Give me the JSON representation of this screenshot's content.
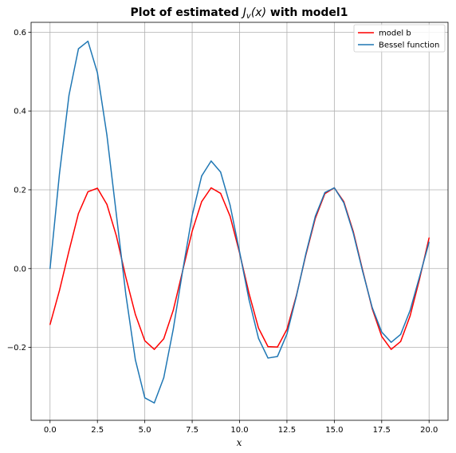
{
  "chart_data": {
    "type": "line",
    "title_prefix": "Plot of estimated ",
    "title_symbol": "J",
    "title_subscript": "v",
    "title_arg": "(x)",
    "title_suffix": " with model1",
    "xlabel": "x",
    "ylabel": "",
    "xlim": [
      -1.0,
      21.0
    ],
    "ylim": [
      -0.385,
      0.625
    ],
    "xticks": [
      0.0,
      2.5,
      5.0,
      7.5,
      10.0,
      12.5,
      15.0,
      17.5,
      20.0
    ],
    "xtick_labels": [
      "0.0",
      "2.5",
      "5.0",
      "7.5",
      "10.0",
      "12.5",
      "15.0",
      "17.5",
      "20.0"
    ],
    "yticks": [
      -0.2,
      0.0,
      0.2,
      0.4,
      0.6
    ],
    "ytick_labels": [
      "−0.2",
      "0.0",
      "0.2",
      "0.4",
      "0.6"
    ],
    "grid": true,
    "legend_position": "top-right",
    "x": [
      0.0,
      0.5,
      1.0,
      1.5,
      2.0,
      2.5,
      3.0,
      3.5,
      4.0,
      4.5,
      5.0,
      5.5,
      6.0,
      6.5,
      7.0,
      7.5,
      8.0,
      8.5,
      9.0,
      9.5,
      10.0,
      10.5,
      11.0,
      11.5,
      12.0,
      12.5,
      13.0,
      13.5,
      14.0,
      14.5,
      15.0,
      15.5,
      16.0,
      16.5,
      17.0,
      17.5,
      18.0,
      18.5,
      19.0,
      19.5,
      20.0
    ],
    "series": [
      {
        "name": "model b",
        "color": "#ff0000",
        "values": [
          -0.142,
          -0.055,
          0.045,
          0.14,
          0.195,
          0.204,
          0.163,
          0.083,
          -0.022,
          -0.116,
          -0.183,
          -0.205,
          -0.178,
          -0.106,
          -0.005,
          0.095,
          0.17,
          0.205,
          0.191,
          0.133,
          0.04,
          -0.063,
          -0.151,
          -0.198,
          -0.199,
          -0.154,
          -0.068,
          0.035,
          0.128,
          0.19,
          0.205,
          0.17,
          0.094,
          -0.005,
          -0.102,
          -0.172,
          -0.205,
          -0.185,
          -0.12,
          -0.026,
          0.078
        ]
      },
      {
        "name": "Bessel function",
        "color": "#1f77b4",
        "values": [
          0.0,
          0.242,
          0.44,
          0.558,
          0.577,
          0.497,
          0.339,
          0.137,
          -0.066,
          -0.231,
          -0.328,
          -0.341,
          -0.277,
          -0.154,
          -0.005,
          0.135,
          0.235,
          0.273,
          0.245,
          0.161,
          0.043,
          -0.079,
          -0.177,
          -0.227,
          -0.223,
          -0.166,
          -0.07,
          0.038,
          0.133,
          0.193,
          0.205,
          0.167,
          0.09,
          -0.008,
          -0.099,
          -0.161,
          -0.187,
          -0.167,
          -0.106,
          -0.02,
          0.067
        ]
      }
    ]
  }
}
